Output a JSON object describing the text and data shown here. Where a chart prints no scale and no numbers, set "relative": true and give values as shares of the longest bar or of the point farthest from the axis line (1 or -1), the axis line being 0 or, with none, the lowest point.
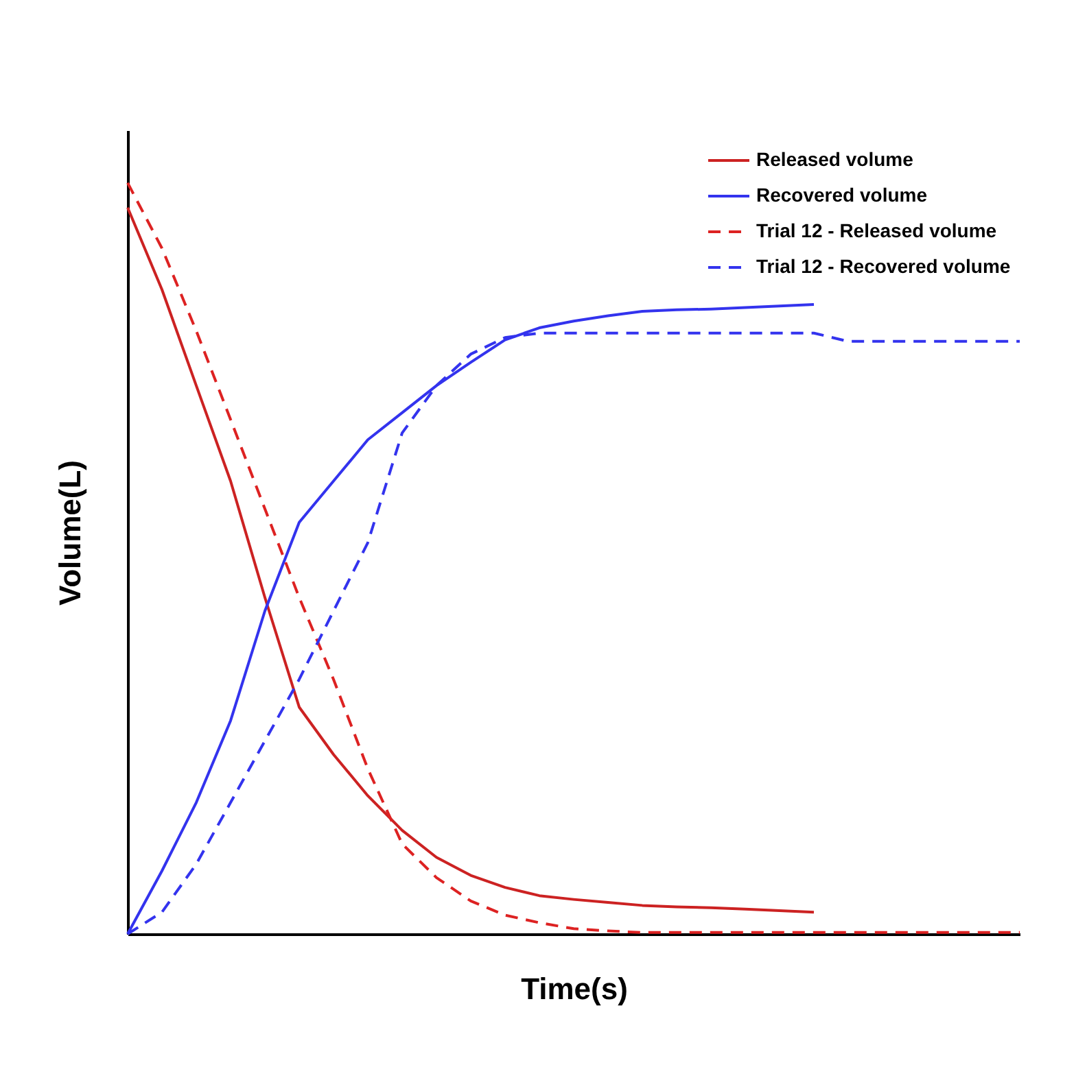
{
  "chart_data": {
    "type": "line",
    "relative": true,
    "xlabel": "Time(s)",
    "ylabel": "Volume(L)",
    "legend": "top right",
    "categories": [
      null,
      null,
      null,
      null,
      null,
      null,
      null,
      null,
      null,
      null,
      null,
      null,
      null,
      null,
      null,
      null,
      null,
      null,
      null,
      null,
      null,
      null,
      null,
      null,
      null,
      null,
      null
    ],
    "series": [
      {
        "name": "Released volume",
        "color": "#cc2222",
        "line_style": "solid",
        "values": [
          0.967,
          0.858,
          0.73,
          0.603,
          0.448,
          0.302,
          0.239,
          0.184,
          0.138,
          0.102,
          0.078,
          0.062,
          0.051,
          0.046,
          0.042,
          0.038,
          0.036,
          0.035,
          0.033,
          0.031,
          0.029,
          null,
          null,
          null,
          null,
          null,
          null
        ]
      },
      {
        "name": "Recovered volume",
        "color": "#3333ee",
        "line_style": "solid",
        "values": [
          0,
          0.084,
          0.175,
          0.284,
          0.43,
          0.548,
          0.603,
          0.658,
          0.694,
          0.73,
          0.761,
          0.791,
          0.807,
          0.816,
          0.823,
          0.829,
          0.831,
          0.832,
          0.834,
          0.836,
          0.838,
          null,
          null,
          null,
          null,
          null,
          null
        ]
      },
      {
        "name": "Trial 12 - Released volume",
        "color": "#dd2222",
        "line_style": "dashed",
        "values": [
          1.0,
          0.913,
          0.803,
          0.685,
          0.566,
          0.448,
          0.339,
          0.22,
          0.12,
          0.075,
          0.044,
          0.025,
          0.015,
          0.007,
          0.004,
          0.002,
          0.002,
          0.002,
          0.002,
          0.002,
          0.002,
          0.002,
          0.002,
          0.002,
          0.002,
          0.002,
          0.002
        ]
      },
      {
        "name": "Trial 12 - Recovered volume",
        "color": "#3333ee",
        "line_style": "dashed",
        "values": [
          0,
          0.029,
          0.093,
          0.175,
          0.257,
          0.339,
          0.43,
          0.521,
          0.667,
          0.73,
          0.772,
          0.794,
          0.8,
          0.8,
          0.8,
          0.8,
          0.8,
          0.8,
          0.8,
          0.8,
          0.8,
          0.789,
          0.789,
          0.789,
          0.789,
          0.789,
          0.789
        ]
      }
    ]
  }
}
